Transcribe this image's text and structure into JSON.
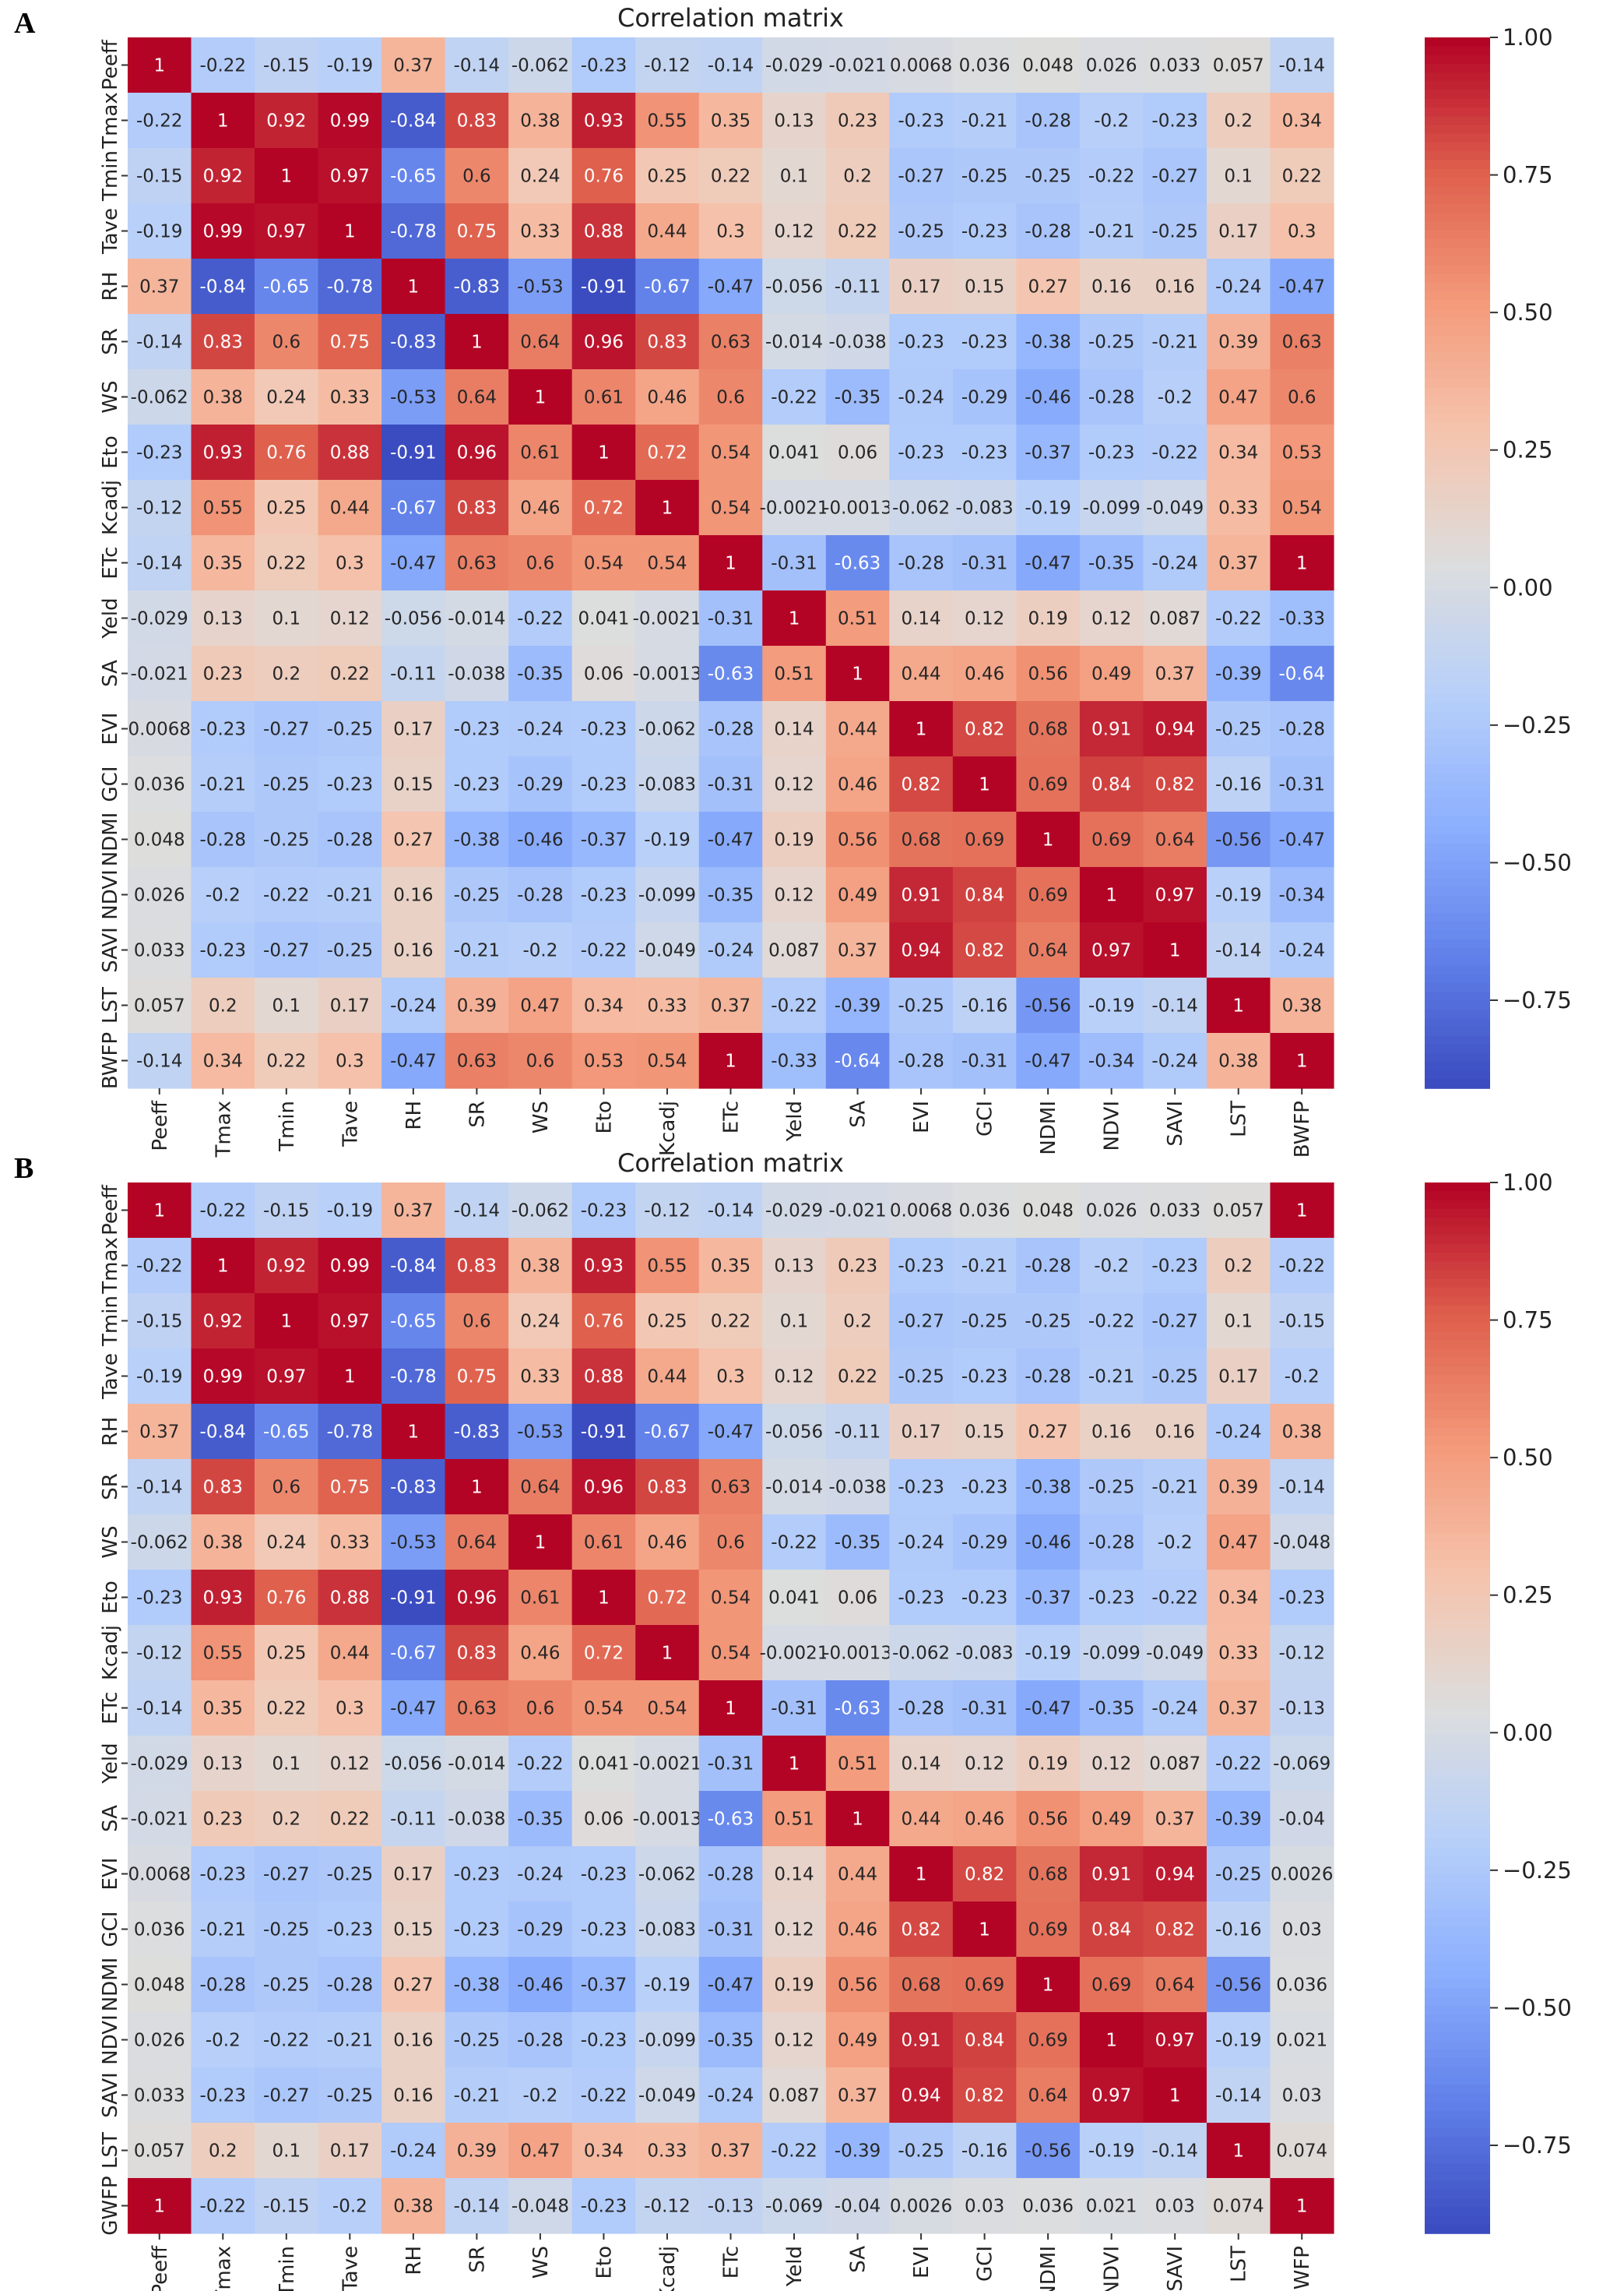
{
  "panel_labels": [
    "A",
    "B"
  ],
  "chart_data": [
    {
      "type": "heatmap",
      "title": "Correlation matrix",
      "labels": [
        "Peeff",
        "Tmax",
        "Tmin",
        "Tave",
        "RH",
        "SR",
        "WS",
        "Eto",
        "Kcadj",
        "ETc",
        "Yeld",
        "SA",
        "EVI",
        "GCI",
        "NDMI",
        "NDVI",
        "SAVI",
        "LST",
        "BWFP"
      ],
      "colorbar": {
        "min": -0.91,
        "max": 1.0,
        "colormap": "coolwarm",
        "ticks": [
          "1.00",
          "0.75",
          "0.50",
          "0.25",
          "0.00",
          "−0.25",
          "−0.50",
          "−0.75"
        ],
        "tick_values": [
          1.0,
          0.75,
          0.5,
          0.25,
          0.0,
          -0.25,
          -0.5,
          -0.75
        ]
      },
      "cells": [
        [
          "1",
          "-0.22",
          "-0.15",
          "-0.19",
          "0.37",
          "-0.14",
          "-0.062",
          "-0.23",
          "-0.12",
          "-0.14",
          "-0.029",
          "-0.021",
          "0.0068",
          "0.036",
          "0.048",
          "0.026",
          "0.033",
          "0.057",
          "-0.14"
        ],
        [
          "-0.22",
          "1",
          "0.92",
          "0.99",
          "-0.84",
          "0.83",
          "0.38",
          "0.93",
          "0.55",
          "0.35",
          "0.13",
          "0.23",
          "-0.23",
          "-0.21",
          "-0.28",
          "-0.2",
          "-0.23",
          "0.2",
          "0.34"
        ],
        [
          "-0.15",
          "0.92",
          "1",
          "0.97",
          "-0.65",
          "0.6",
          "0.24",
          "0.76",
          "0.25",
          "0.22",
          "0.1",
          "0.2",
          "-0.27",
          "-0.25",
          "-0.25",
          "-0.22",
          "-0.27",
          "0.1",
          "0.22"
        ],
        [
          "-0.19",
          "0.99",
          "0.97",
          "1",
          "-0.78",
          "0.75",
          "0.33",
          "0.88",
          "0.44",
          "0.3",
          "0.12",
          "0.22",
          "-0.25",
          "-0.23",
          "-0.28",
          "-0.21",
          "-0.25",
          "0.17",
          "0.3"
        ],
        [
          "0.37",
          "-0.84",
          "-0.65",
          "-0.78",
          "1",
          "-0.83",
          "-0.53",
          "-0.91",
          "-0.67",
          "-0.47",
          "-0.056",
          "-0.11",
          "0.17",
          "0.15",
          "0.27",
          "0.16",
          "0.16",
          "-0.24",
          "-0.47"
        ],
        [
          "-0.14",
          "0.83",
          "0.6",
          "0.75",
          "-0.83",
          "1",
          "0.64",
          "0.96",
          "0.83",
          "0.63",
          "-0.014",
          "-0.038",
          "-0.23",
          "-0.23",
          "-0.38",
          "-0.25",
          "-0.21",
          "0.39",
          "0.63"
        ],
        [
          "-0.062",
          "0.38",
          "0.24",
          "0.33",
          "-0.53",
          "0.64",
          "1",
          "0.61",
          "0.46",
          "0.6",
          "-0.22",
          "-0.35",
          "-0.24",
          "-0.29",
          "-0.46",
          "-0.28",
          "-0.2",
          "0.47",
          "0.6"
        ],
        [
          "-0.23",
          "0.93",
          "0.76",
          "0.88",
          "-0.91",
          "0.96",
          "0.61",
          "1",
          "0.72",
          "0.54",
          "0.041",
          "0.06",
          "-0.23",
          "-0.23",
          "-0.37",
          "-0.23",
          "-0.22",
          "0.34",
          "0.53"
        ],
        [
          "-0.12",
          "0.55",
          "0.25",
          "0.44",
          "-0.67",
          "0.83",
          "0.46",
          "0.72",
          "1",
          "0.54",
          "-0.0021",
          "-0.0013",
          "-0.062",
          "-0.083",
          "-0.19",
          "-0.099",
          "-0.049",
          "0.33",
          "0.54"
        ],
        [
          "-0.14",
          "0.35",
          "0.22",
          "0.3",
          "-0.47",
          "0.63",
          "0.6",
          "0.54",
          "0.54",
          "1",
          "-0.31",
          "-0.63",
          "-0.28",
          "-0.31",
          "-0.47",
          "-0.35",
          "-0.24",
          "0.37",
          "1"
        ],
        [
          "-0.029",
          "0.13",
          "0.1",
          "0.12",
          "-0.056",
          "-0.014",
          "-0.22",
          "0.041",
          "-0.0021",
          "-0.31",
          "1",
          "0.51",
          "0.14",
          "0.12",
          "0.19",
          "0.12",
          "0.087",
          "-0.22",
          "-0.33"
        ],
        [
          "-0.021",
          "0.23",
          "0.2",
          "0.22",
          "-0.11",
          "-0.038",
          "-0.35",
          "0.06",
          "-0.0013",
          "-0.63",
          "0.51",
          "1",
          "0.44",
          "0.46",
          "0.56",
          "0.49",
          "0.37",
          "-0.39",
          "-0.64"
        ],
        [
          "0.0068",
          "-0.23",
          "-0.27",
          "-0.25",
          "0.17",
          "-0.23",
          "-0.24",
          "-0.23",
          "-0.062",
          "-0.28",
          "0.14",
          "0.44",
          "1",
          "0.82",
          "0.68",
          "0.91",
          "0.94",
          "-0.25",
          "-0.28"
        ],
        [
          "0.036",
          "-0.21",
          "-0.25",
          "-0.23",
          "0.15",
          "-0.23",
          "-0.29",
          "-0.23",
          "-0.083",
          "-0.31",
          "0.12",
          "0.46",
          "0.82",
          "1",
          "0.69",
          "0.84",
          "0.82",
          "-0.16",
          "-0.31"
        ],
        [
          "0.048",
          "-0.28",
          "-0.25",
          "-0.28",
          "0.27",
          "-0.38",
          "-0.46",
          "-0.37",
          "-0.19",
          "-0.47",
          "0.19",
          "0.56",
          "0.68",
          "0.69",
          "1",
          "0.69",
          "0.64",
          "-0.56",
          "-0.47"
        ],
        [
          "0.026",
          "-0.2",
          "-0.22",
          "-0.21",
          "0.16",
          "-0.25",
          "-0.28",
          "-0.23",
          "-0.099",
          "-0.35",
          "0.12",
          "0.49",
          "0.91",
          "0.84",
          "0.69",
          "1",
          "0.97",
          "-0.19",
          "-0.34"
        ],
        [
          "0.033",
          "-0.23",
          "-0.27",
          "-0.25",
          "0.16",
          "-0.21",
          "-0.2",
          "-0.22",
          "-0.049",
          "-0.24",
          "0.087",
          "0.37",
          "0.94",
          "0.82",
          "0.64",
          "0.97",
          "1",
          "-0.14",
          "-0.24"
        ],
        [
          "0.057",
          "0.2",
          "0.1",
          "0.17",
          "-0.24",
          "0.39",
          "0.47",
          "0.34",
          "0.33",
          "0.37",
          "-0.22",
          "-0.39",
          "-0.25",
          "-0.16",
          "-0.56",
          "-0.19",
          "-0.14",
          "1",
          "0.38"
        ],
        [
          "-0.14",
          "0.34",
          "0.22",
          "0.3",
          "-0.47",
          "0.63",
          "0.6",
          "0.53",
          "0.54",
          "1",
          "-0.33",
          "-0.64",
          "-0.28",
          "-0.31",
          "-0.47",
          "-0.34",
          "-0.24",
          "0.38",
          "1"
        ]
      ]
    },
    {
      "type": "heatmap",
      "title": "Correlation matrix",
      "labels": [
        "Peeff",
        "Tmax",
        "Tmin",
        "Tave",
        "RH",
        "SR",
        "WS",
        "Eto",
        "Kcadj",
        "ETc",
        "Yeld",
        "SA",
        "EVI",
        "GCI",
        "NDMI",
        "NDVI",
        "SAVI",
        "LST",
        "GWFP"
      ],
      "colorbar": {
        "min": -0.91,
        "max": 1.0,
        "colormap": "coolwarm",
        "ticks": [
          "1.00",
          "0.75",
          "0.50",
          "0.25",
          "0.00",
          "−0.25",
          "−0.50",
          "−0.75"
        ],
        "tick_values": [
          1.0,
          0.75,
          0.5,
          0.25,
          0.0,
          -0.25,
          -0.5,
          -0.75
        ]
      },
      "cells": [
        [
          "1",
          "-0.22",
          "-0.15",
          "-0.19",
          "0.37",
          "-0.14",
          "-0.062",
          "-0.23",
          "-0.12",
          "-0.14",
          "-0.029",
          "-0.021",
          "0.0068",
          "0.036",
          "0.048",
          "0.026",
          "0.033",
          "0.057",
          "1"
        ],
        [
          "-0.22",
          "1",
          "0.92",
          "0.99",
          "-0.84",
          "0.83",
          "0.38",
          "0.93",
          "0.55",
          "0.35",
          "0.13",
          "0.23",
          "-0.23",
          "-0.21",
          "-0.28",
          "-0.2",
          "-0.23",
          "0.2",
          "-0.22"
        ],
        [
          "-0.15",
          "0.92",
          "1",
          "0.97",
          "-0.65",
          "0.6",
          "0.24",
          "0.76",
          "0.25",
          "0.22",
          "0.1",
          "0.2",
          "-0.27",
          "-0.25",
          "-0.25",
          "-0.22",
          "-0.27",
          "0.1",
          "-0.15"
        ],
        [
          "-0.19",
          "0.99",
          "0.97",
          "1",
          "-0.78",
          "0.75",
          "0.33",
          "0.88",
          "0.44",
          "0.3",
          "0.12",
          "0.22",
          "-0.25",
          "-0.23",
          "-0.28",
          "-0.21",
          "-0.25",
          "0.17",
          "-0.2"
        ],
        [
          "0.37",
          "-0.84",
          "-0.65",
          "-0.78",
          "1",
          "-0.83",
          "-0.53",
          "-0.91",
          "-0.67",
          "-0.47",
          "-0.056",
          "-0.11",
          "0.17",
          "0.15",
          "0.27",
          "0.16",
          "0.16",
          "-0.24",
          "0.38"
        ],
        [
          "-0.14",
          "0.83",
          "0.6",
          "0.75",
          "-0.83",
          "1",
          "0.64",
          "0.96",
          "0.83",
          "0.63",
          "-0.014",
          "-0.038",
          "-0.23",
          "-0.23",
          "-0.38",
          "-0.25",
          "-0.21",
          "0.39",
          "-0.14"
        ],
        [
          "-0.062",
          "0.38",
          "0.24",
          "0.33",
          "-0.53",
          "0.64",
          "1",
          "0.61",
          "0.46",
          "0.6",
          "-0.22",
          "-0.35",
          "-0.24",
          "-0.29",
          "-0.46",
          "-0.28",
          "-0.2",
          "0.47",
          "-0.048"
        ],
        [
          "-0.23",
          "0.93",
          "0.76",
          "0.88",
          "-0.91",
          "0.96",
          "0.61",
          "1",
          "0.72",
          "0.54",
          "0.041",
          "0.06",
          "-0.23",
          "-0.23",
          "-0.37",
          "-0.23",
          "-0.22",
          "0.34",
          "-0.23"
        ],
        [
          "-0.12",
          "0.55",
          "0.25",
          "0.44",
          "-0.67",
          "0.83",
          "0.46",
          "0.72",
          "1",
          "0.54",
          "-0.0021",
          "-0.0013",
          "-0.062",
          "-0.083",
          "-0.19",
          "-0.099",
          "-0.049",
          "0.33",
          "-0.12"
        ],
        [
          "-0.14",
          "0.35",
          "0.22",
          "0.3",
          "-0.47",
          "0.63",
          "0.6",
          "0.54",
          "0.54",
          "1",
          "-0.31",
          "-0.63",
          "-0.28",
          "-0.31",
          "-0.47",
          "-0.35",
          "-0.24",
          "0.37",
          "-0.13"
        ],
        [
          "-0.029",
          "0.13",
          "0.1",
          "0.12",
          "-0.056",
          "-0.014",
          "-0.22",
          "0.041",
          "-0.0021",
          "-0.31",
          "1",
          "0.51",
          "0.14",
          "0.12",
          "0.19",
          "0.12",
          "0.087",
          "-0.22",
          "-0.069"
        ],
        [
          "-0.021",
          "0.23",
          "0.2",
          "0.22",
          "-0.11",
          "-0.038",
          "-0.35",
          "0.06",
          "-0.0013",
          "-0.63",
          "0.51",
          "1",
          "0.44",
          "0.46",
          "0.56",
          "0.49",
          "0.37",
          "-0.39",
          "-0.04"
        ],
        [
          "0.0068",
          "-0.23",
          "-0.27",
          "-0.25",
          "0.17",
          "-0.23",
          "-0.24",
          "-0.23",
          "-0.062",
          "-0.28",
          "0.14",
          "0.44",
          "1",
          "0.82",
          "0.68",
          "0.91",
          "0.94",
          "-0.25",
          "0.0026"
        ],
        [
          "0.036",
          "-0.21",
          "-0.25",
          "-0.23",
          "0.15",
          "-0.23",
          "-0.29",
          "-0.23",
          "-0.083",
          "-0.31",
          "0.12",
          "0.46",
          "0.82",
          "1",
          "0.69",
          "0.84",
          "0.82",
          "-0.16",
          "0.03"
        ],
        [
          "0.048",
          "-0.28",
          "-0.25",
          "-0.28",
          "0.27",
          "-0.38",
          "-0.46",
          "-0.37",
          "-0.19",
          "-0.47",
          "0.19",
          "0.56",
          "0.68",
          "0.69",
          "1",
          "0.69",
          "0.64",
          "-0.56",
          "0.036"
        ],
        [
          "0.026",
          "-0.2",
          "-0.22",
          "-0.21",
          "0.16",
          "-0.25",
          "-0.28",
          "-0.23",
          "-0.099",
          "-0.35",
          "0.12",
          "0.49",
          "0.91",
          "0.84",
          "0.69",
          "1",
          "0.97",
          "-0.19",
          "0.021"
        ],
        [
          "0.033",
          "-0.23",
          "-0.27",
          "-0.25",
          "0.16",
          "-0.21",
          "-0.2",
          "-0.22",
          "-0.049",
          "-0.24",
          "0.087",
          "0.37",
          "0.94",
          "0.82",
          "0.64",
          "0.97",
          "1",
          "-0.14",
          "0.03"
        ],
        [
          "0.057",
          "0.2",
          "0.1",
          "0.17",
          "-0.24",
          "0.39",
          "0.47",
          "0.34",
          "0.33",
          "0.37",
          "-0.22",
          "-0.39",
          "-0.25",
          "-0.16",
          "-0.56",
          "-0.19",
          "-0.14",
          "1",
          "0.074"
        ],
        [
          "1",
          "-0.22",
          "-0.15",
          "-0.2",
          "0.38",
          "-0.14",
          "-0.048",
          "-0.23",
          "-0.12",
          "-0.13",
          "-0.069",
          "-0.04",
          "0.0026",
          "0.03",
          "0.036",
          "0.021",
          "0.03",
          "0.074",
          "1"
        ]
      ]
    }
  ]
}
